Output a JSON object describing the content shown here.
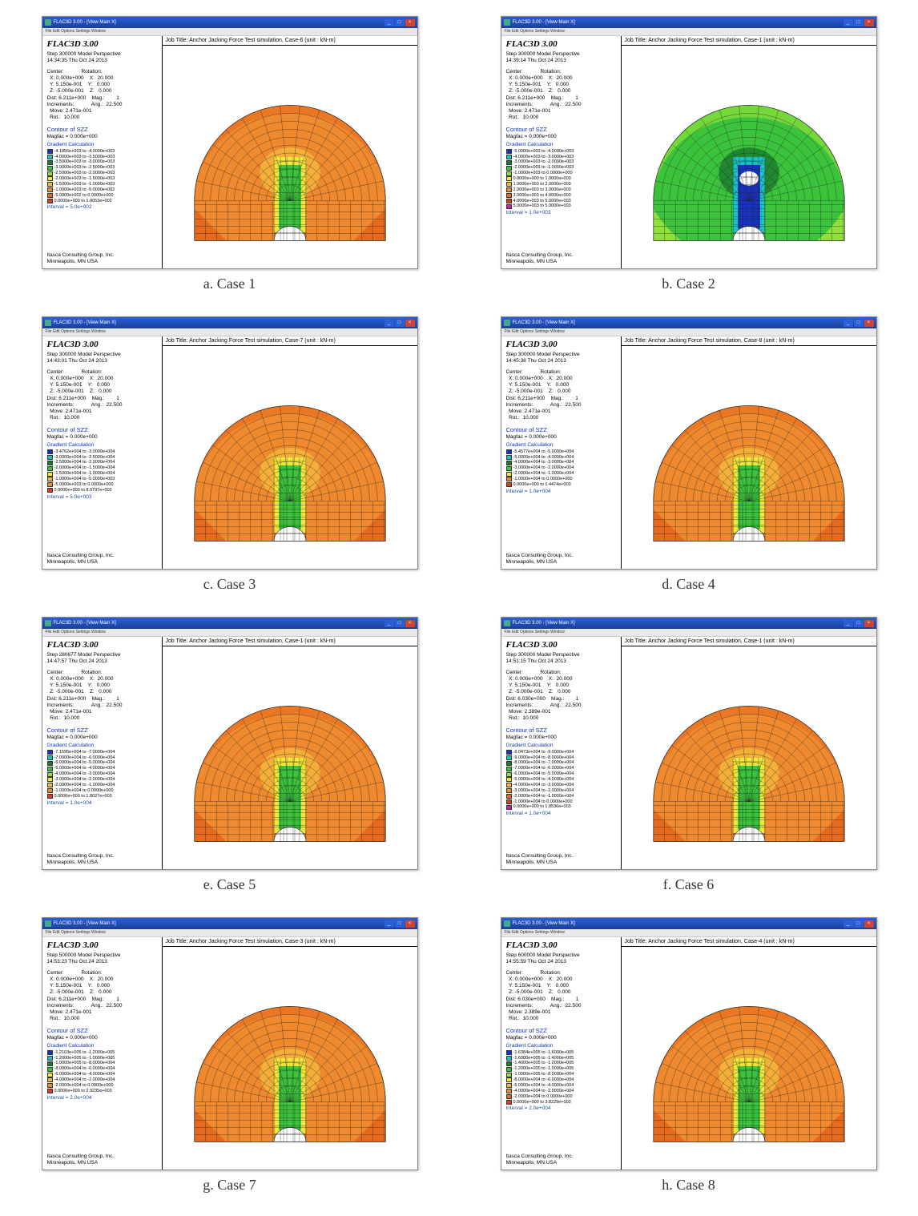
{
  "common": {
    "app_title": "FLAC3D 3.00",
    "window_caption": "FLAC3D 3.00 - [View Main X]",
    "menubar": "File Edit Options Settings Window",
    "contour_title": "Contour of SZZ",
    "magfac": "  Magfac =  0.000e+000",
    "grad_title": "Gradient Calculation",
    "footer1": "Itasca Consulting Group, Inc.",
    "footer2": "Minneapolis, MN  USA",
    "coord_center_label": "Center:",
    "coord_rot_label": "Rotation:"
  },
  "palette": {
    "blue": "#1733c5",
    "cyan": "#19c4c4",
    "dgreen": "#1a7a2e",
    "green": "#3bc43b",
    "lgreen": "#8fe03a",
    "yellow": "#f3e63a",
    "lorange": "#f4b83a",
    "orange": "#f08a2e",
    "dorange": "#e56a1e",
    "red": "#d84020",
    "magenta": "#c425a8",
    "grid": "#222222"
  },
  "panels": [
    {
      "caption": "a. Case 1",
      "job_title": "Job Title: Anchor Jacking Force Test simulation, Case-6 (unit : kN-m)",
      "step": "Step 300000  Model Perspective",
      "time": "14:34:35 Thu Oct 24 2013",
      "coords": [
        "  X: 0.000e+000    X:  20.000",
        "  Y: 5.150e-001    Y:   0.000",
        "  Z: -5.000e-001    Z:   0.000",
        "Dist: 6.211e+000    Mag.:        1",
        "Increments:            Ang.:  22.500",
        "  Move: 2.471e-001",
        "  Rot.:  10.000"
      ],
      "legend": [
        {
          "c": "blue",
          "t": "-4.1856e+003 to -4.0000e+003"
        },
        {
          "c": "cyan",
          "t": "-4.0000e+003 to -3.5000e+003"
        },
        {
          "c": "dgreen",
          "t": "-3.5000e+003 to -3.0000e+003"
        },
        {
          "c": "green",
          "t": "-3.0000e+003 to -2.5000e+003"
        },
        {
          "c": "lgreen",
          "t": "-2.5000e+003 to -2.0000e+003"
        },
        {
          "c": "yellow",
          "t": "-2.0000e+003 to -1.5000e+003"
        },
        {
          "c": "lorange",
          "t": "-1.5000e+003 to -1.0000e+003"
        },
        {
          "c": "orange",
          "t": "-1.0000e+003 to -5.0000e+002"
        },
        {
          "c": "dorange",
          "t": "-5.0000e+002 to  0.0000e+000"
        },
        {
          "c": "red",
          "t": " 0.0000e+000 to  1.0053e+002"
        }
      ],
      "interval": "   Interval =  5.0e+002",
      "body_color": "orange",
      "core_color": "green",
      "corner_color": "dorange",
      "deep_colors": false
    },
    {
      "caption": "b. Case 2",
      "job_title": "Job Title: Anchor Jacking Force Test simulation, Case-1 (unit : kN-m)",
      "step": "Step 300000  Model Perspective",
      "time": "14:39:14 Thu Oct 24 2013",
      "coords": [
        "  X: 0.000e+000    X:  20.000",
        "  Y: 5.150e-001    Y:   0.000",
        "  Z: -5.000e-001    Z:   0.000",
        "Dist: 6.211e+000    Mag.:        1",
        "Increments:            Ang.:  22.500",
        "  Move: 2.471e-001",
        "  Rot.:  10.000"
      ],
      "legend": [
        {
          "c": "blue",
          "t": "-5.0000e+003 to -4.0000e+003"
        },
        {
          "c": "cyan",
          "t": "-4.0000e+003 to -3.0000e+003"
        },
        {
          "c": "dgreen",
          "t": "-3.0000e+003 to -2.0000e+003"
        },
        {
          "c": "green",
          "t": "-2.0000e+003 to -1.0000e+003"
        },
        {
          "c": "lgreen",
          "t": "-1.0000e+003 to  0.0000e+000"
        },
        {
          "c": "yellow",
          "t": " 0.0000e+000 to  1.0000e+003"
        },
        {
          "c": "lorange",
          "t": " 1.0000e+003 to  2.0000e+003"
        },
        {
          "c": "orange",
          "t": " 2.0000e+003 to  3.0000e+003"
        },
        {
          "c": "dorange",
          "t": " 3.0000e+003 to  4.0000e+003"
        },
        {
          "c": "red",
          "t": " 4.0000e+003 to  5.0000e+003"
        },
        {
          "c": "magenta",
          "t": " 5.0000e+003 to  5.0000e+003"
        }
      ],
      "interval": "   Interval =  1.0e+003",
      "body_color": "green",
      "core_color": "blue",
      "corner_color": "lgreen",
      "deep_colors": true
    },
    {
      "caption": "c. Case 3",
      "job_title": "Job Title: Anchor Jacking Force Test simulation, Case-7 (unit : kN-m)",
      "step": "Step 300000  Model Perspective",
      "time": "14:43:01 Thu Oct 24 2013",
      "coords": [
        "  X: 0.000e+000    X:  20.000",
        "  Y: 5.150e-001    Y:   0.000",
        "  Z: -5.000e-001    Z:   0.000",
        "Dist: 6.211e+000    Mag.:        1",
        "Increments:            Ang.:  22.500",
        "  Move: 2.471e-001",
        "  Rot.:  10.000"
      ],
      "legend": [
        {
          "c": "blue",
          "t": "-3.4762e+004 to -3.0000e+004"
        },
        {
          "c": "cyan",
          "t": "-3.0000e+004 to -2.5000e+004"
        },
        {
          "c": "dgreen",
          "t": "-2.5000e+004 to -2.0000e+004"
        },
        {
          "c": "green",
          "t": "-2.0000e+004 to -1.5000e+004"
        },
        {
          "c": "yellow",
          "t": "-1.5000e+004 to -1.0000e+004"
        },
        {
          "c": "lorange",
          "t": "-1.0000e+004 to -5.0000e+003"
        },
        {
          "c": "orange",
          "t": "-5.0000e+003 to  0.0000e+000"
        },
        {
          "c": "red",
          "t": " 0.0000e+000 to  8.9797e+002"
        }
      ],
      "interval": "   Interval =  5.0e+003",
      "body_color": "orange",
      "core_color": "green",
      "corner_color": "dorange",
      "deep_colors": false
    },
    {
      "caption": "d. Case 4",
      "job_title": "Job Title: Anchor Jacking Force Test simulation, Case-8 (unit : kN-m)",
      "step": "Step 300000  Model Perspective",
      "time": "14:45:38 Thu Oct 24 2013",
      "coords": [
        "  X: 0.000e+000    X:  20.000",
        "  Y: 5.150e-001    Y:   0.000",
        "  Z: -5.000e-001    Z:   0.000",
        "Dist: 6.211e+000    Mag.:        1",
        "Increments:            Ang.:  22.500",
        "  Move: 2.471e-001",
        "  Rot.:  10.000"
      ],
      "legend": [
        {
          "c": "blue",
          "t": "-5.4577e+004 to -5.0000e+004"
        },
        {
          "c": "cyan",
          "t": "-5.0000e+004 to -4.0000e+004"
        },
        {
          "c": "dgreen",
          "t": "-4.0000e+004 to -3.0000e+004"
        },
        {
          "c": "green",
          "t": "-3.0000e+004 to -2.0000e+004"
        },
        {
          "c": "yellow",
          "t": "-2.0000e+004 to -1.0000e+004"
        },
        {
          "c": "orange",
          "t": "-1.0000e+004 to  0.0000e+000"
        },
        {
          "c": "red",
          "t": " 0.0000e+000 to  1.4474e+003"
        }
      ],
      "interval": "   Interval =  1.0e+004",
      "body_color": "orange",
      "core_color": "green",
      "corner_color": "dorange",
      "deep_colors": false
    },
    {
      "caption": "e. Case 5",
      "job_title": "Job Title: Anchor Jacking Force Test simulation, Case-1 (unit : kN-m)",
      "step": "Step 280677  Model Perspective",
      "time": "14:47:57 Thu Oct 24 2013",
      "coords": [
        "  X: 0.000e+000    X:  20.000",
        "  Y: 5.150e-001    Y:   0.000",
        "  Z: -5.000e-001    Z:   0.000",
        "Dist: 6.211e+000    Mag.:        1",
        "Increments:            Ang.:  22.500",
        "  Move: 2.471e-001",
        "  Rot.:  10.000"
      ],
      "legend": [
        {
          "c": "blue",
          "t": "-7.1595e+004 to -7.0000e+004"
        },
        {
          "c": "cyan",
          "t": "-7.0000e+004 to -6.0000e+004"
        },
        {
          "c": "dgreen",
          "t": "-6.0000e+004 to -5.0000e+004"
        },
        {
          "c": "green",
          "t": "-5.0000e+004 to -4.0000e+004"
        },
        {
          "c": "lgreen",
          "t": "-4.0000e+004 to -3.0000e+004"
        },
        {
          "c": "yellow",
          "t": "-3.0000e+004 to -2.0000e+004"
        },
        {
          "c": "lorange",
          "t": "-2.0000e+004 to -1.0000e+004"
        },
        {
          "c": "orange",
          "t": "-1.0000e+004 to  0.0000e+000"
        },
        {
          "c": "red",
          "t": " 0.0000e+000 to  1.8027e+003"
        }
      ],
      "interval": "   Interval =  1.0e+004",
      "body_color": "orange",
      "core_color": "green",
      "corner_color": "dorange",
      "deep_colors": false
    },
    {
      "caption": "f. Case 6",
      "job_title": "Job Title: Anchor Jacking Force Test simulation, Case-1 (unit : kN-m)",
      "step": "Step 300000  Model Perspective",
      "time": "14:51:15 Thu Oct 24 2013",
      "coords": [
        "  X: 0.000e+000    X:  20.000",
        "  Y: 5.150e-001    Y:   0.000",
        "  Z: -5.000e-001    Z:   0.000",
        "Dist: 6.030e+000    Mag.:        1",
        "Increments:            Ang.:  22.500",
        "  Move: 2.389e-001",
        "  Rot.:  10.000"
      ],
      "legend": [
        {
          "c": "blue",
          "t": "-9.0473e+004 to -9.0000e+004"
        },
        {
          "c": "cyan",
          "t": "-9.0000e+004 to -8.0000e+004"
        },
        {
          "c": "dgreen",
          "t": "-8.0000e+004 to -7.0000e+004"
        },
        {
          "c": "green",
          "t": "-7.0000e+004 to -6.0000e+004"
        },
        {
          "c": "lgreen",
          "t": "-6.0000e+004 to -5.0000e+004"
        },
        {
          "c": "yellow",
          "t": "-5.0000e+004 to -4.0000e+004"
        },
        {
          "c": "lorange",
          "t": "-4.0000e+004 to -3.0000e+004"
        },
        {
          "c": "orange",
          "t": "-3.0000e+004 to -2.0000e+004"
        },
        {
          "c": "dorange",
          "t": "-2.0000e+004 to -1.0000e+004"
        },
        {
          "c": "red",
          "t": "-1.0000e+004 to  0.0000e+000"
        },
        {
          "c": "magenta",
          "t": " 0.0000e+000 to  1.8536e+003"
        }
      ],
      "interval": "   Interval =  1.0e+004",
      "body_color": "orange",
      "core_color": "green",
      "corner_color": "dorange",
      "deep_colors": false
    },
    {
      "caption": "g. Case 7",
      "job_title": "Job Title: Anchor Jacking Force Test simulation, Case-3 (unit : kN-m)",
      "step": "Step 500000  Model Perspective",
      "time": "14:53:23 Thu Oct 24 2013",
      "coords": [
        "  X: 0.000e+000    X:  20.000",
        "  Y: 5.150e-001    Y:   0.000",
        "  Z: -5.000e-001    Z:   0.000",
        "Dist: 6.211e+000    Mag.:        1",
        "Increments:            Ang.:  22.500",
        "  Move: 2.471e-001",
        "  Rot.:  10.000"
      ],
      "legend": [
        {
          "c": "blue",
          "t": "-1.2103e+005 to -1.2000e+005"
        },
        {
          "c": "cyan",
          "t": "-1.2000e+005 to -1.0000e+005"
        },
        {
          "c": "dgreen",
          "t": "-1.0000e+005 to -8.0000e+004"
        },
        {
          "c": "green",
          "t": "-8.0000e+004 to -6.0000e+004"
        },
        {
          "c": "yellow",
          "t": "-6.0000e+004 to -4.0000e+004"
        },
        {
          "c": "lorange",
          "t": "-4.0000e+004 to -2.0000e+004"
        },
        {
          "c": "orange",
          "t": "-2.0000e+004 to  0.0000e+000"
        },
        {
          "c": "red",
          "t": " 0.0000e+000 to  2.9235e+003"
        }
      ],
      "interval": "   Interval =  2.0e+004",
      "body_color": "orange",
      "core_color": "green",
      "corner_color": "dorange",
      "deep_colors": false
    },
    {
      "caption": "h. Case 8",
      "job_title": "Job Title: Anchor Jacking Force Test simulation, Case-4 (unit : kN-m)",
      "step": "Step 600000  Model Perspective",
      "time": "14:55:59 Thu Oct 24 2013",
      "coords": [
        "  X: 0.000e+000    X:  20.000",
        "  Y: 5.150e-001    Y:   0.000",
        "  Z: -5.000e-001    Z:   0.000",
        "Dist: 6.030e+000    Mag.:        1",
        "Increments:            Ang.:  22.500",
        "  Move: 2.389e-001",
        "  Rot.:  10.000"
      ],
      "legend": [
        {
          "c": "blue",
          "t": "-1.6384e+005 to -1.6000e+005"
        },
        {
          "c": "cyan",
          "t": "-1.6000e+005 to -1.4000e+005"
        },
        {
          "c": "dgreen",
          "t": "-1.4000e+005 to -1.2000e+005"
        },
        {
          "c": "green",
          "t": "-1.2000e+005 to -1.0000e+005"
        },
        {
          "c": "lgreen",
          "t": "-1.0000e+005 to -8.0000e+004"
        },
        {
          "c": "yellow",
          "t": "-8.0000e+004 to -6.0000e+004"
        },
        {
          "c": "lorange",
          "t": "-6.0000e+004 to -4.0000e+004"
        },
        {
          "c": "orange",
          "t": "-4.0000e+004 to -2.0000e+004"
        },
        {
          "c": "dorange",
          "t": "-2.0000e+004 to  0.0000e+000"
        },
        {
          "c": "red",
          "t": " 0.0000e+000 to  3.8229e+003"
        }
      ],
      "interval": "   Interval =  2.0e+004",
      "body_color": "orange",
      "core_color": "green",
      "corner_color": "dorange",
      "deep_colors": false
    }
  ]
}
